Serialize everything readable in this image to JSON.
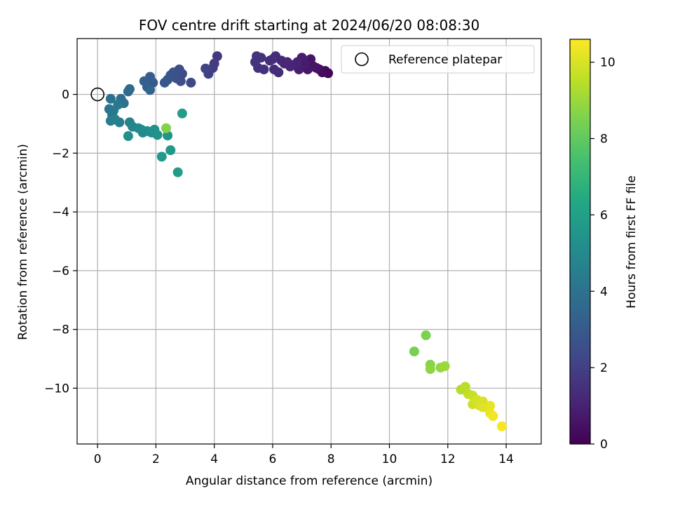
{
  "chart_data": {
    "type": "scatter",
    "title": "FOV centre drift starting at 2024/06/20 08:08:30",
    "xlabel": "Angular distance from reference (arcmin)",
    "ylabel": "Rotation from reference (arcmin)",
    "xlim": [
      -0.7,
      15.2
    ],
    "ylim": [
      -11.9,
      1.9
    ],
    "xticks": [
      0,
      2,
      4,
      6,
      8,
      10,
      12,
      14
    ],
    "yticks": [
      0,
      -2,
      -4,
      -6,
      -8,
      -10
    ],
    "xtick_labels": [
      "0",
      "2",
      "4",
      "6",
      "8",
      "10",
      "12",
      "14"
    ],
    "ytick_labels": [
      "0",
      "−2",
      "−4",
      "−6",
      "−8",
      "−10"
    ],
    "grid": true,
    "legend": {
      "placement": "top-right",
      "label": "Reference platepar"
    },
    "reference_point": {
      "x": 0,
      "y": 0
    },
    "colorbar": {
      "label": "Hours from first FF file",
      "range": [
        0,
        10.6
      ],
      "ticks": [
        0,
        2,
        4,
        6,
        8,
        10
      ],
      "tick_labels": [
        "0",
        "2",
        "4",
        "6",
        "8",
        "10"
      ],
      "colormap": "viridis"
    },
    "points": [
      {
        "x": 7.9,
        "y": 0.72,
        "h": 0.1
      },
      {
        "x": 7.8,
        "y": 0.8,
        "h": 0.2
      },
      {
        "x": 7.7,
        "y": 0.75,
        "h": 0.3
      },
      {
        "x": 7.6,
        "y": 0.85,
        "h": 0.4
      },
      {
        "x": 7.5,
        "y": 0.9,
        "h": 0.5
      },
      {
        "x": 7.4,
        "y": 0.95,
        "h": 0.6
      },
      {
        "x": 7.3,
        "y": 1.2,
        "h": 0.6
      },
      {
        "x": 7.2,
        "y": 0.85,
        "h": 0.7
      },
      {
        "x": 7.1,
        "y": 1.05,
        "h": 0.8
      },
      {
        "x": 7.0,
        "y": 1.25,
        "h": 0.8
      },
      {
        "x": 6.9,
        "y": 0.85,
        "h": 0.9
      },
      {
        "x": 6.85,
        "y": 1.1,
        "h": 1.0
      },
      {
        "x": 6.7,
        "y": 1.0,
        "h": 1.0
      },
      {
        "x": 6.6,
        "y": 0.95,
        "h": 1.1
      },
      {
        "x": 6.5,
        "y": 1.1,
        "h": 1.1
      },
      {
        "x": 6.4,
        "y": 1.05,
        "h": 1.2
      },
      {
        "x": 6.3,
        "y": 1.15,
        "h": 1.2
      },
      {
        "x": 6.2,
        "y": 0.75,
        "h": 1.3
      },
      {
        "x": 6.1,
        "y": 1.3,
        "h": 1.3
      },
      {
        "x": 6.05,
        "y": 0.85,
        "h": 1.35
      },
      {
        "x": 6.0,
        "y": 1.2,
        "h": 1.4
      },
      {
        "x": 5.9,
        "y": 1.15,
        "h": 1.4
      },
      {
        "x": 5.7,
        "y": 0.85,
        "h": 1.45
      },
      {
        "x": 5.6,
        "y": 1.25,
        "h": 1.5
      },
      {
        "x": 5.5,
        "y": 0.9,
        "h": 1.5
      },
      {
        "x": 5.45,
        "y": 1.3,
        "h": 1.55
      },
      {
        "x": 5.4,
        "y": 1.1,
        "h": 1.6
      },
      {
        "x": 4.1,
        "y": 1.3,
        "h": 1.7
      },
      {
        "x": 4.0,
        "y": 1.05,
        "h": 1.8
      },
      {
        "x": 3.95,
        "y": 0.9,
        "h": 1.9
      },
      {
        "x": 3.8,
        "y": 0.7,
        "h": 2.0
      },
      {
        "x": 3.7,
        "y": 0.88,
        "h": 2.1
      },
      {
        "x": 3.2,
        "y": 0.4,
        "h": 2.3
      },
      {
        "x": 2.9,
        "y": 0.7,
        "h": 2.4
      },
      {
        "x": 2.8,
        "y": 0.85,
        "h": 2.5
      },
      {
        "x": 2.85,
        "y": 0.45,
        "h": 2.5
      },
      {
        "x": 2.7,
        "y": 0.55,
        "h": 2.6
      },
      {
        "x": 2.6,
        "y": 0.75,
        "h": 2.7
      },
      {
        "x": 2.5,
        "y": 0.65,
        "h": 2.7
      },
      {
        "x": 2.4,
        "y": 0.5,
        "h": 2.8
      },
      {
        "x": 2.3,
        "y": 0.4,
        "h": 2.9
      },
      {
        "x": 1.9,
        "y": 0.4,
        "h": 3.0
      },
      {
        "x": 1.8,
        "y": 0.6,
        "h": 3.1
      },
      {
        "x": 1.7,
        "y": 0.25,
        "h": 3.2
      },
      {
        "x": 1.6,
        "y": 0.45,
        "h": 3.3
      },
      {
        "x": 1.8,
        "y": 0.15,
        "h": 3.4
      },
      {
        "x": 1.1,
        "y": 0.18,
        "h": 3.6
      },
      {
        "x": 1.05,
        "y": 0.1,
        "h": 3.7
      },
      {
        "x": 0.8,
        "y": -0.15,
        "h": 3.8
      },
      {
        "x": 0.9,
        "y": -0.3,
        "h": 3.9
      },
      {
        "x": 0.45,
        "y": -0.15,
        "h": 4.0
      },
      {
        "x": 0.4,
        "y": -0.5,
        "h": 4.1
      },
      {
        "x": 0.55,
        "y": -0.55,
        "h": 4.2
      },
      {
        "x": 0.5,
        "y": -0.7,
        "h": 4.3
      },
      {
        "x": 0.7,
        "y": -0.35,
        "h": 4.3
      },
      {
        "x": 0.75,
        "y": -0.95,
        "h": 4.4
      },
      {
        "x": 0.45,
        "y": -0.9,
        "h": 4.5
      },
      {
        "x": 0.6,
        "y": -0.85,
        "h": 4.6
      },
      {
        "x": 1.1,
        "y": -0.95,
        "h": 4.7
      },
      {
        "x": 1.2,
        "y": -1.1,
        "h": 4.8
      },
      {
        "x": 1.4,
        "y": -1.15,
        "h": 4.9
      },
      {
        "x": 1.5,
        "y": -1.2,
        "h": 5.0
      },
      {
        "x": 1.55,
        "y": -1.3,
        "h": 5.0
      },
      {
        "x": 1.7,
        "y": -1.25,
        "h": 5.1
      },
      {
        "x": 1.05,
        "y": -1.42,
        "h": 5.2
      },
      {
        "x": 1.85,
        "y": -1.3,
        "h": 5.2
      },
      {
        "x": 1.95,
        "y": -1.2,
        "h": 5.3
      },
      {
        "x": 2.05,
        "y": -1.38,
        "h": 5.4
      },
      {
        "x": 2.4,
        "y": -1.4,
        "h": 5.5
      },
      {
        "x": 2.5,
        "y": -1.9,
        "h": 5.6
      },
      {
        "x": 2.2,
        "y": -2.12,
        "h": 5.7
      },
      {
        "x": 2.75,
        "y": -2.65,
        "h": 5.8
      },
      {
        "x": 2.9,
        "y": -0.65,
        "h": 5.9
      },
      {
        "x": 2.35,
        "y": -1.15,
        "h": 8.6
      },
      {
        "x": 10.85,
        "y": -8.75,
        "h": 8.4
      },
      {
        "x": 11.25,
        "y": -8.2,
        "h": 8.5
      },
      {
        "x": 11.4,
        "y": -9.2,
        "h": 8.7
      },
      {
        "x": 11.4,
        "y": -9.35,
        "h": 8.8
      },
      {
        "x": 11.75,
        "y": -9.3,
        "h": 8.9
      },
      {
        "x": 11.9,
        "y": -9.25,
        "h": 9.0
      },
      {
        "x": 12.45,
        "y": -10.05,
        "h": 9.4
      },
      {
        "x": 12.6,
        "y": -9.95,
        "h": 9.5
      },
      {
        "x": 12.7,
        "y": -10.2,
        "h": 9.6
      },
      {
        "x": 12.85,
        "y": -10.25,
        "h": 9.7
      },
      {
        "x": 12.85,
        "y": -10.55,
        "h": 9.8
      },
      {
        "x": 13.0,
        "y": -10.4,
        "h": 9.9
      },
      {
        "x": 13.1,
        "y": -10.6,
        "h": 10.0
      },
      {
        "x": 13.2,
        "y": -10.45,
        "h": 10.0
      },
      {
        "x": 13.2,
        "y": -10.65,
        "h": 10.1
      },
      {
        "x": 13.45,
        "y": -10.6,
        "h": 10.2
      },
      {
        "x": 13.45,
        "y": -10.85,
        "h": 10.3
      },
      {
        "x": 13.55,
        "y": -10.95,
        "h": 10.4
      },
      {
        "x": 13.85,
        "y": -11.3,
        "h": 10.5
      }
    ]
  }
}
